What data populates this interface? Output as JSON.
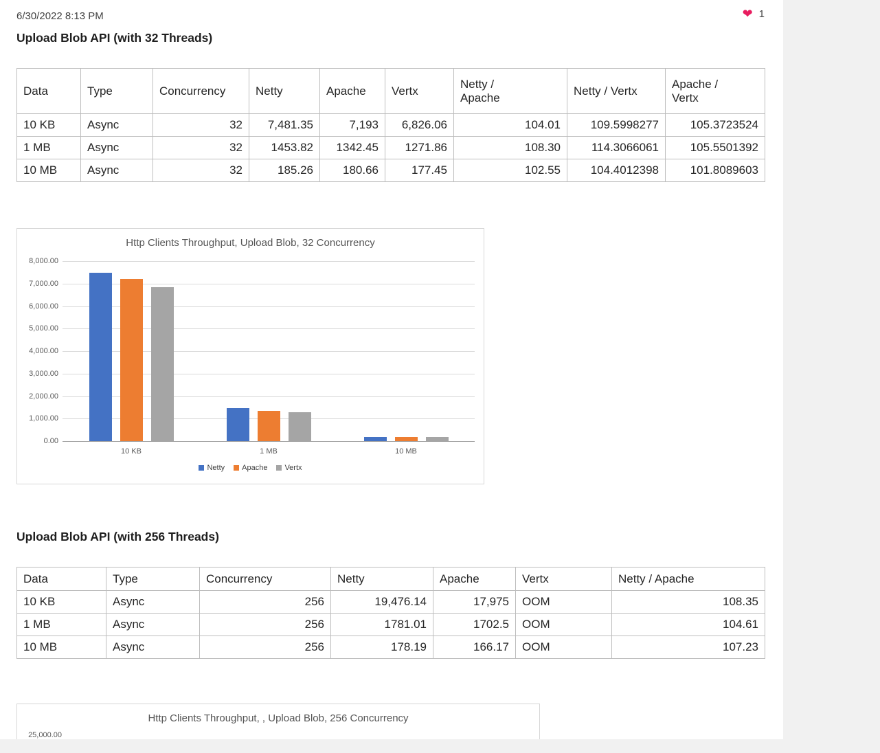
{
  "page": {
    "timestamp": "6/30/2022 8:13 PM",
    "reaction": {
      "icon": "heart",
      "count": "1"
    }
  },
  "section1": {
    "heading": "Upload Blob API (with 32 Threads)",
    "table": {
      "columns": [
        "Data",
        "Type",
        "Concurrency",
        "Netty",
        "Apache",
        "Vertx",
        "Netty /\nApache",
        "Netty / Vertx",
        "Apache /\nVertx"
      ],
      "rows": [
        [
          "10 KB",
          "Async",
          "32",
          "7,481.35",
          "7,193",
          "6,826.06",
          "104.01",
          "109.5998277",
          "105.3723524"
        ],
        [
          "1 MB",
          "Async",
          "32",
          "1453.82",
          "1342.45",
          "1271.86",
          "108.30",
          "114.3066061",
          "105.5501392"
        ],
        [
          "10 MB",
          "Async",
          "32",
          "185.26",
          "180.66",
          "177.45",
          "102.55",
          "104.4012398",
          "101.8089603"
        ]
      ]
    }
  },
  "section2": {
    "heading": "Upload Blob API (with 256 Threads)",
    "table": {
      "columns": [
        "Data",
        "Type",
        "Concurrency",
        "Netty",
        "Apache",
        "Vertx",
        "Netty / Apache"
      ],
      "rows": [
        [
          "10 KB",
          "Async",
          "256",
          "19,476.14",
          "17,975",
          "OOM",
          "108.35"
        ],
        [
          "1 MB",
          "Async",
          "256",
          "1781.01",
          "1702.5",
          "OOM",
          "104.61"
        ],
        [
          "10 MB",
          "Async",
          "256",
          "178.19",
          "166.17",
          "OOM",
          "107.23"
        ]
      ]
    }
  },
  "chart_data": [
    {
      "type": "bar",
      "title": "Http Clients Throughput, Upload Blob, 32 Concurrency",
      "categories": [
        "10 KB",
        "1 MB",
        "10 MB"
      ],
      "series": [
        {
          "name": "Netty",
          "color": "#4472C4",
          "values": [
            7481.35,
            1453.82,
            185.26
          ]
        },
        {
          "name": "Apache",
          "color": "#ED7D31",
          "values": [
            7193,
            1342.45,
            180.66
          ]
        },
        {
          "name": "Vertx",
          "color": "#A5A5A5",
          "values": [
            6826.06,
            1271.86,
            177.45
          ]
        }
      ],
      "ylim": [
        0,
        8000
      ],
      "ytick_step": 1000,
      "ytick_labels": [
        "8,000.00",
        "7,000.00",
        "6,000.00",
        "5,000.00",
        "4,000.00",
        "3,000.00",
        "2,000.00",
        "1,000.00",
        "0.00"
      ],
      "grid": true,
      "legend_position": "bottom"
    },
    {
      "type": "bar",
      "partial": true,
      "title": "Http Clients Throughput, , Upload Blob, 256 Concurrency",
      "ytick_labels_visible": [
        "25,000.00"
      ]
    }
  ]
}
